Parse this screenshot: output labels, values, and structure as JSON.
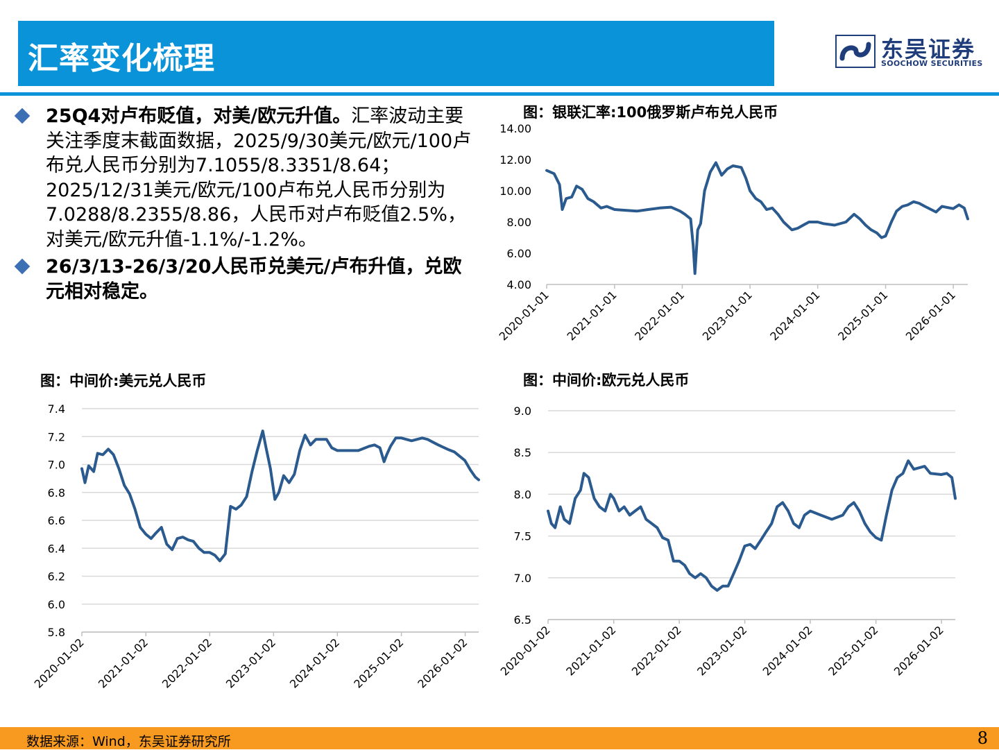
{
  "header": {
    "title": "汇率变化梳理"
  },
  "logo": {
    "cn": "东吴证券",
    "en": "SOOCHOW SECURITIES"
  },
  "bullets": [
    {
      "bold": "25Q4对卢布贬值，对美/欧元升值。",
      "text": "汇率波动主要关注季度末截面数据，2025/9/30美元/欧元/100卢布兑人民币分别为7.1055/8.3351/8.64；2025/12/31美元/欧元/100卢布兑人民币分别为7.0288/8.2355/8.86，人民币对卢布贬值2.5%，对美元/欧元升值-1.1%/-1.2%。"
    },
    {
      "bold": "26/3/13-26/3/20人民币兑美元/卢布升值，兑欧元相对稳定。",
      "text": ""
    }
  ],
  "footer": {
    "source": "数据来源：Wind，东吴证券研究所",
    "page": "8"
  },
  "colors": {
    "accent": "#0a93d8",
    "line": "#2a5a8e",
    "footer": "#f79a1f"
  },
  "chart_data": [
    {
      "type": "line",
      "title": "图：银联汇率:100俄罗斯卢布兑人民币",
      "x_ticks": [
        "2020-01-01",
        "2021-01-01",
        "2022-01-01",
        "2023-01-01",
        "2024-01-01",
        "2025-01-01",
        "2026-01-01"
      ],
      "y_ticks": [
        "4.00",
        "6.00",
        "8.00",
        "10.00",
        "12.00",
        "14.00"
      ],
      "ylim": [
        4,
        14
      ],
      "xlim": [
        "2020-01-01",
        "2026-03-20"
      ],
      "grid": false,
      "series": [
        {
          "values": [
            [
              "2020-01-01",
              11.3
            ],
            [
              "2020-02-10",
              11.1
            ],
            [
              "2020-03-10",
              10.4
            ],
            [
              "2020-03-25",
              8.8
            ],
            [
              "2020-04-15",
              9.5
            ],
            [
              "2020-05-15",
              9.6
            ],
            [
              "2020-06-10",
              10.3
            ],
            [
              "2020-07-10",
              10.1
            ],
            [
              "2020-08-10",
              9.5
            ],
            [
              "2020-09-10",
              9.3
            ],
            [
              "2020-10-20",
              8.9
            ],
            [
              "2020-11-20",
              9.0
            ],
            [
              "2021-01-01",
              8.8
            ],
            [
              "2021-03-01",
              8.75
            ],
            [
              "2021-05-01",
              8.7
            ],
            [
              "2021-07-01",
              8.8
            ],
            [
              "2021-09-01",
              8.9
            ],
            [
              "2021-11-01",
              8.95
            ],
            [
              "2021-12-20",
              8.7
            ],
            [
              "2022-01-15",
              8.5
            ],
            [
              "2022-02-15",
              8.2
            ],
            [
              "2022-03-01",
              6.5
            ],
            [
              "2022-03-10",
              4.7
            ],
            [
              "2022-03-25",
              7.5
            ],
            [
              "2022-04-10",
              7.9
            ],
            [
              "2022-05-01",
              10.0
            ],
            [
              "2022-06-01",
              11.2
            ],
            [
              "2022-07-01",
              11.8
            ],
            [
              "2022-08-01",
              11.0
            ],
            [
              "2022-09-01",
              11.4
            ],
            [
              "2022-10-01",
              11.6
            ],
            [
              "2022-11-15",
              11.5
            ],
            [
              "2022-12-10",
              10.8
            ],
            [
              "2023-01-01",
              10.0
            ],
            [
              "2023-02-01",
              9.5
            ],
            [
              "2023-03-01",
              9.3
            ],
            [
              "2023-04-01",
              8.8
            ],
            [
              "2023-05-01",
              8.9
            ],
            [
              "2023-06-01",
              8.5
            ],
            [
              "2023-07-01",
              8.0
            ],
            [
              "2023-08-15",
              7.5
            ],
            [
              "2023-09-15",
              7.6
            ],
            [
              "2023-10-15",
              7.8
            ],
            [
              "2023-11-15",
              8.0
            ],
            [
              "2024-01-01",
              8.0
            ],
            [
              "2024-02-01",
              7.9
            ],
            [
              "2024-04-01",
              7.8
            ],
            [
              "2024-06-01",
              8.0
            ],
            [
              "2024-07-15",
              8.5
            ],
            [
              "2024-08-15",
              8.2
            ],
            [
              "2024-09-15",
              7.8
            ],
            [
              "2024-10-15",
              7.5
            ],
            [
              "2024-11-15",
              7.3
            ],
            [
              "2024-12-10",
              7.0
            ],
            [
              "2025-01-01",
              7.1
            ],
            [
              "2025-02-01",
              8.0
            ],
            [
              "2025-03-01",
              8.7
            ],
            [
              "2025-04-01",
              9.0
            ],
            [
              "2025-05-01",
              9.1
            ],
            [
              "2025-06-01",
              9.3
            ],
            [
              "2025-07-01",
              9.2
            ],
            [
              "2025-08-01",
              9.0
            ],
            [
              "2025-09-30",
              8.64
            ],
            [
              "2025-11-01",
              9.0
            ],
            [
              "2025-12-31",
              8.86
            ],
            [
              "2026-02-01",
              9.1
            ],
            [
              "2026-03-01",
              8.9
            ],
            [
              "2026-03-20",
              8.2
            ]
          ]
        }
      ]
    },
    {
      "type": "line",
      "title": "图：中间价:美元兑人民币",
      "x_ticks": [
        "2020-01-02",
        "2021-01-02",
        "2022-01-02",
        "2023-01-02",
        "2024-01-02",
        "2025-01-02",
        "2026-01-02"
      ],
      "y_ticks": [
        "5.8",
        "6.0",
        "6.2",
        "6.4",
        "6.6",
        "6.8",
        "7.0",
        "7.2",
        "7.4"
      ],
      "ylim": [
        5.8,
        7.4
      ],
      "xlim": [
        "2020-01-02",
        "2026-03-20"
      ],
      "grid": true,
      "series": [
        {
          "values": [
            [
              "2020-01-02",
              6.97
            ],
            [
              "2020-01-20",
              6.87
            ],
            [
              "2020-02-10",
              6.99
            ],
            [
              "2020-03-10",
              6.95
            ],
            [
              "2020-04-01",
              7.08
            ],
            [
              "2020-05-01",
              7.07
            ],
            [
              "2020-06-01",
              7.11
            ],
            [
              "2020-07-01",
              7.07
            ],
            [
              "2020-08-01",
              6.97
            ],
            [
              "2020-09-01",
              6.85
            ],
            [
              "2020-10-01",
              6.79
            ],
            [
              "2020-11-01",
              6.68
            ],
            [
              "2020-12-01",
              6.55
            ],
            [
              "2021-01-02",
              6.5
            ],
            [
              "2021-02-01",
              6.47
            ],
            [
              "2021-03-01",
              6.51
            ],
            [
              "2021-04-01",
              6.55
            ],
            [
              "2021-05-01",
              6.43
            ],
            [
              "2021-06-01",
              6.39
            ],
            [
              "2021-07-01",
              6.47
            ],
            [
              "2021-08-01",
              6.48
            ],
            [
              "2021-09-01",
              6.46
            ],
            [
              "2021-10-01",
              6.45
            ],
            [
              "2021-11-01",
              6.4
            ],
            [
              "2021-12-01",
              6.37
            ],
            [
              "2022-01-02",
              6.37
            ],
            [
              "2022-02-01",
              6.35
            ],
            [
              "2022-03-01",
              6.31
            ],
            [
              "2022-04-01",
              6.36
            ],
            [
              "2022-05-01",
              6.7
            ],
            [
              "2022-06-01",
              6.68
            ],
            [
              "2022-07-01",
              6.71
            ],
            [
              "2022-08-01",
              6.77
            ],
            [
              "2022-09-01",
              6.95
            ],
            [
              "2022-10-01",
              7.1
            ],
            [
              "2022-11-01",
              7.24
            ],
            [
              "2022-11-20",
              7.12
            ],
            [
              "2022-12-15",
              6.97
            ],
            [
              "2023-01-10",
              6.75
            ],
            [
              "2023-02-01",
              6.8
            ],
            [
              "2023-03-01",
              6.92
            ],
            [
              "2023-04-01",
              6.87
            ],
            [
              "2023-05-01",
              6.93
            ],
            [
              "2023-06-01",
              7.1
            ],
            [
              "2023-07-01",
              7.21
            ],
            [
              "2023-08-01",
              7.14
            ],
            [
              "2023-09-01",
              7.18
            ],
            [
              "2023-10-01",
              7.18
            ],
            [
              "2023-11-01",
              7.18
            ],
            [
              "2023-12-01",
              7.12
            ],
            [
              "2024-01-02",
              7.1
            ],
            [
              "2024-03-01",
              7.1
            ],
            [
              "2024-05-01",
              7.1
            ],
            [
              "2024-07-01",
              7.13
            ],
            [
              "2024-08-01",
              7.14
            ],
            [
              "2024-09-01",
              7.12
            ],
            [
              "2024-09-25",
              7.02
            ],
            [
              "2024-10-10",
              7.07
            ],
            [
              "2024-11-01",
              7.13
            ],
            [
              "2024-12-01",
              7.19
            ],
            [
              "2025-01-02",
              7.19
            ],
            [
              "2025-03-01",
              7.17
            ],
            [
              "2025-05-01",
              7.19
            ],
            [
              "2025-06-01",
              7.18
            ],
            [
              "2025-07-01",
              7.16
            ],
            [
              "2025-08-01",
              7.14
            ],
            [
              "2025-09-30",
              7.1055
            ],
            [
              "2025-11-01",
              7.09
            ],
            [
              "2025-12-31",
              7.0288
            ],
            [
              "2026-02-01",
              6.96
            ],
            [
              "2026-03-01",
              6.91
            ],
            [
              "2026-03-20",
              6.89
            ]
          ]
        }
      ]
    },
    {
      "type": "line",
      "title": "图：中间价:欧元兑人民币",
      "x_ticks": [
        "2020-01-02",
        "2021-01-02",
        "2022-01-02",
        "2023-01-02",
        "2024-01-02",
        "2025-01-02",
        "2026-01-02"
      ],
      "y_ticks": [
        "6.5",
        "7.0",
        "7.5",
        "8.0",
        "8.5",
        "9.0"
      ],
      "ylim": [
        6.5,
        9.0
      ],
      "xlim": [
        "2020-01-02",
        "2026-03-20"
      ],
      "grid": true,
      "series": [
        {
          "values": [
            [
              "2020-01-02",
              7.8
            ],
            [
              "2020-01-20",
              7.65
            ],
            [
              "2020-02-10",
              7.6
            ],
            [
              "2020-03-10",
              7.85
            ],
            [
              "2020-04-01",
              7.7
            ],
            [
              "2020-05-01",
              7.65
            ],
            [
              "2020-06-01",
              7.95
            ],
            [
              "2020-07-01",
              8.05
            ],
            [
              "2020-07-20",
              8.25
            ],
            [
              "2020-08-15",
              8.2
            ],
            [
              "2020-09-15",
              7.95
            ],
            [
              "2020-10-15",
              7.85
            ],
            [
              "2020-11-15",
              7.8
            ],
            [
              "2020-12-15",
              8.0
            ],
            [
              "2021-01-02",
              7.95
            ],
            [
              "2021-02-01",
              7.8
            ],
            [
              "2021-03-01",
              7.85
            ],
            [
              "2021-04-01",
              7.75
            ],
            [
              "2021-05-01",
              7.8
            ],
            [
              "2021-06-01",
              7.85
            ],
            [
              "2021-07-01",
              7.7
            ],
            [
              "2021-08-01",
              7.65
            ],
            [
              "2021-09-01",
              7.6
            ],
            [
              "2021-10-01",
              7.48
            ],
            [
              "2021-11-01",
              7.45
            ],
            [
              "2021-12-01",
              7.2
            ],
            [
              "2022-01-02",
              7.2
            ],
            [
              "2022-02-01",
              7.15
            ],
            [
              "2022-03-01",
              7.05
            ],
            [
              "2022-04-01",
              7.0
            ],
            [
              "2022-05-01",
              7.05
            ],
            [
              "2022-06-01",
              7.0
            ],
            [
              "2022-07-01",
              6.9
            ],
            [
              "2022-08-01",
              6.85
            ],
            [
              "2022-09-01",
              6.9
            ],
            [
              "2022-10-01",
              6.9
            ],
            [
              "2022-11-01",
              7.05
            ],
            [
              "2022-12-01",
              7.2
            ],
            [
              "2023-01-02",
              7.38
            ],
            [
              "2023-02-01",
              7.4
            ],
            [
              "2023-03-01",
              7.35
            ],
            [
              "2023-04-01",
              7.45
            ],
            [
              "2023-05-01",
              7.55
            ],
            [
              "2023-06-01",
              7.65
            ],
            [
              "2023-07-01",
              7.85
            ],
            [
              "2023-08-01",
              7.9
            ],
            [
              "2023-09-01",
              7.8
            ],
            [
              "2023-10-01",
              7.65
            ],
            [
              "2023-11-01",
              7.6
            ],
            [
              "2023-12-01",
              7.75
            ],
            [
              "2024-01-02",
              7.8
            ],
            [
              "2024-03-01",
              7.75
            ],
            [
              "2024-05-01",
              7.7
            ],
            [
              "2024-07-01",
              7.75
            ],
            [
              "2024-08-01",
              7.85
            ],
            [
              "2024-09-01",
              7.9
            ],
            [
              "2024-10-01",
              7.8
            ],
            [
              "2024-11-01",
              7.65
            ],
            [
              "2024-12-01",
              7.55
            ],
            [
              "2025-01-02",
              7.48
            ],
            [
              "2025-02-01",
              7.45
            ],
            [
              "2025-03-01",
              7.75
            ],
            [
              "2025-04-01",
              8.05
            ],
            [
              "2025-05-01",
              8.2
            ],
            [
              "2025-06-01",
              8.25
            ],
            [
              "2025-07-01",
              8.4
            ],
            [
              "2025-08-01",
              8.3
            ],
            [
              "2025-09-30",
              8.3351
            ],
            [
              "2025-11-01",
              8.25
            ],
            [
              "2025-12-31",
              8.2355
            ],
            [
              "2026-02-01",
              8.25
            ],
            [
              "2026-03-01",
              8.2
            ],
            [
              "2026-03-20",
              7.95
            ]
          ]
        }
      ]
    }
  ]
}
